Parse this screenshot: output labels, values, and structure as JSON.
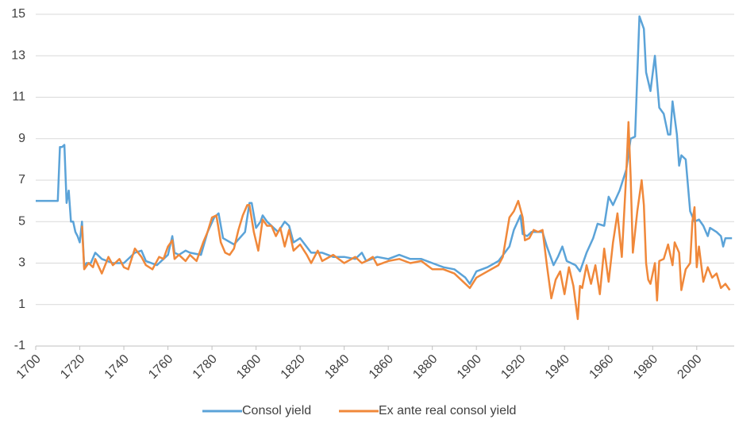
{
  "chart_data": {
    "type": "line",
    "xlim": [
      1700,
      2017
    ],
    "xticks": [
      1700,
      1720,
      1740,
      1760,
      1780,
      1800,
      1820,
      1840,
      1860,
      1880,
      1900,
      1920,
      1940,
      1960,
      1980,
      2000
    ],
    "ylim": [
      -1,
      15
    ],
    "yticks": [
      -1,
      1,
      3,
      5,
      7,
      9,
      11,
      13,
      15
    ],
    "grid": true,
    "legend": "bottom",
    "series": [
      {
        "name": "Consol yield",
        "color": "#5ba3d8",
        "x": [
          1700,
          1710,
          1711,
          1712,
          1713,
          1714,
          1715,
          1716,
          1717,
          1718,
          1719,
          1720,
          1721,
          1722,
          1723,
          1725,
          1727,
          1730,
          1735,
          1740,
          1745,
          1748,
          1750,
          1755,
          1760,
          1762,
          1763,
          1765,
          1768,
          1770,
          1775,
          1778,
          1781,
          1783,
          1785,
          1790,
          1795,
          1797,
          1798,
          1800,
          1802,
          1803,
          1805,
          1810,
          1813,
          1815,
          1817,
          1820,
          1825,
          1830,
          1835,
          1840,
          1845,
          1848,
          1850,
          1855,
          1860,
          1865,
          1870,
          1875,
          1880,
          1885,
          1890,
          1895,
          1897,
          1900,
          1905,
          1910,
          1915,
          1917,
          1920,
          1921,
          1923,
          1925,
          1930,
          1932,
          1935,
          1937,
          1939,
          1941,
          1945,
          1947,
          1950,
          1953,
          1955,
          1958,
          1960,
          1962,
          1965,
          1968,
          1970,
          1972,
          1974,
          1976,
          1977,
          1979,
          1981,
          1983,
          1985,
          1987,
          1988,
          1989,
          1991,
          1992,
          1993,
          1995,
          1997,
          1999,
          2001,
          2003,
          2005,
          2006,
          2009,
          2011,
          2012,
          2013,
          2016
        ],
        "values": [
          6.0,
          6.0,
          8.6,
          8.6,
          8.7,
          5.9,
          6.5,
          5.0,
          5.0,
          4.5,
          4.3,
          4.0,
          5.0,
          2.8,
          3.0,
          3.0,
          3.5,
          3.2,
          3.0,
          3.0,
          3.5,
          3.6,
          3.1,
          2.9,
          3.4,
          4.3,
          3.5,
          3.4,
          3.6,
          3.5,
          3.4,
          4.5,
          5.2,
          5.4,
          4.2,
          3.9,
          4.5,
          5.9,
          5.9,
          4.7,
          5.0,
          5.3,
          5.0,
          4.5,
          5.0,
          4.8,
          4.0,
          4.2,
          3.5,
          3.5,
          3.3,
          3.3,
          3.2,
          3.5,
          3.1,
          3.3,
          3.2,
          3.4,
          3.2,
          3.2,
          3.0,
          2.8,
          2.7,
          2.3,
          2.0,
          2.6,
          2.8,
          3.1,
          3.8,
          4.6,
          5.3,
          4.4,
          4.3,
          4.5,
          4.5,
          3.8,
          2.9,
          3.3,
          3.8,
          3.1,
          2.9,
          2.6,
          3.5,
          4.2,
          4.9,
          4.8,
          6.2,
          5.8,
          6.5,
          7.5,
          9.0,
          9.1,
          14.9,
          14.3,
          12.2,
          11.3,
          13.0,
          10.5,
          10.2,
          9.2,
          9.2,
          10.8,
          9.2,
          7.7,
          8.2,
          8.0,
          5.5,
          5.0,
          5.1,
          4.8,
          4.3,
          4.7,
          4.5,
          4.3,
          3.8,
          4.2,
          4.2
        ]
      },
      {
        "name": "Ex ante real consol yield",
        "color": "#f0883a",
        "x": [
          1721,
          1722,
          1724,
          1726,
          1727,
          1730,
          1733,
          1735,
          1738,
          1740,
          1742,
          1745,
          1748,
          1750,
          1753,
          1756,
          1758,
          1760,
          1762,
          1763,
          1765,
          1768,
          1770,
          1773,
          1776,
          1778,
          1780,
          1782,
          1784,
          1786,
          1788,
          1790,
          1792,
          1794,
          1796,
          1797,
          1799,
          1801,
          1803,
          1805,
          1807,
          1809,
          1811,
          1813,
          1815,
          1817,
          1820,
          1823,
          1825,
          1828,
          1830,
          1835,
          1840,
          1845,
          1848,
          1850,
          1853,
          1855,
          1860,
          1865,
          1870,
          1875,
          1880,
          1885,
          1890,
          1895,
          1897,
          1900,
          1905,
          1910,
          1912,
          1915,
          1917,
          1919,
          1921,
          1922,
          1924,
          1926,
          1928,
          1930,
          1932,
          1934,
          1936,
          1938,
          1940,
          1942,
          1944,
          1946,
          1947,
          1948,
          1950,
          1952,
          1954,
          1956,
          1958,
          1960,
          1962,
          1964,
          1966,
          1968,
          1969,
          1970,
          1971,
          1973,
          1975,
          1976,
          1977,
          1978,
          1979,
          1981,
          1982,
          1983,
          1985,
          1987,
          1989,
          1990,
          1992,
          1993,
          1995,
          1997,
          1998,
          1999,
          2000,
          2001,
          2003,
          2005,
          2007,
          2009,
          2011,
          2013,
          2015
        ],
        "values": [
          4.8,
          2.7,
          3.0,
          2.8,
          3.2,
          2.5,
          3.3,
          2.9,
          3.2,
          2.8,
          2.7,
          3.7,
          3.3,
          2.9,
          2.7,
          3.3,
          3.2,
          3.8,
          4.1,
          3.2,
          3.4,
          3.1,
          3.4,
          3.1,
          4.0,
          4.5,
          5.2,
          5.3,
          4.0,
          3.5,
          3.4,
          3.7,
          4.6,
          5.3,
          5.8,
          5.8,
          4.5,
          3.6,
          5.1,
          4.8,
          4.8,
          4.3,
          4.7,
          3.8,
          4.6,
          3.6,
          3.9,
          3.4,
          3.0,
          3.6,
          3.1,
          3.4,
          3.0,
          3.3,
          3.0,
          3.1,
          3.3,
          2.9,
          3.1,
          3.2,
          3.0,
          3.1,
          2.7,
          2.7,
          2.5,
          2.0,
          1.8,
          2.3,
          2.6,
          2.9,
          3.3,
          5.2,
          5.5,
          6.0,
          5.2,
          4.1,
          4.2,
          4.6,
          4.5,
          4.6,
          2.9,
          1.3,
          2.2,
          2.6,
          1.5,
          2.8,
          1.9,
          0.3,
          1.9,
          1.8,
          2.9,
          2.0,
          2.9,
          1.5,
          3.7,
          2.1,
          4.0,
          5.4,
          3.3,
          7.3,
          9.8,
          7.2,
          3.5,
          5.5,
          7.0,
          5.8,
          3.0,
          2.2,
          2.0,
          3.0,
          1.2,
          3.1,
          3.2,
          3.9,
          2.9,
          4.0,
          3.5,
          1.7,
          2.7,
          3.0,
          5.0,
          5.7,
          2.8,
          3.8,
          2.1,
          2.8,
          2.3,
          2.5,
          1.8,
          2.0,
          1.7
        ]
      }
    ]
  }
}
